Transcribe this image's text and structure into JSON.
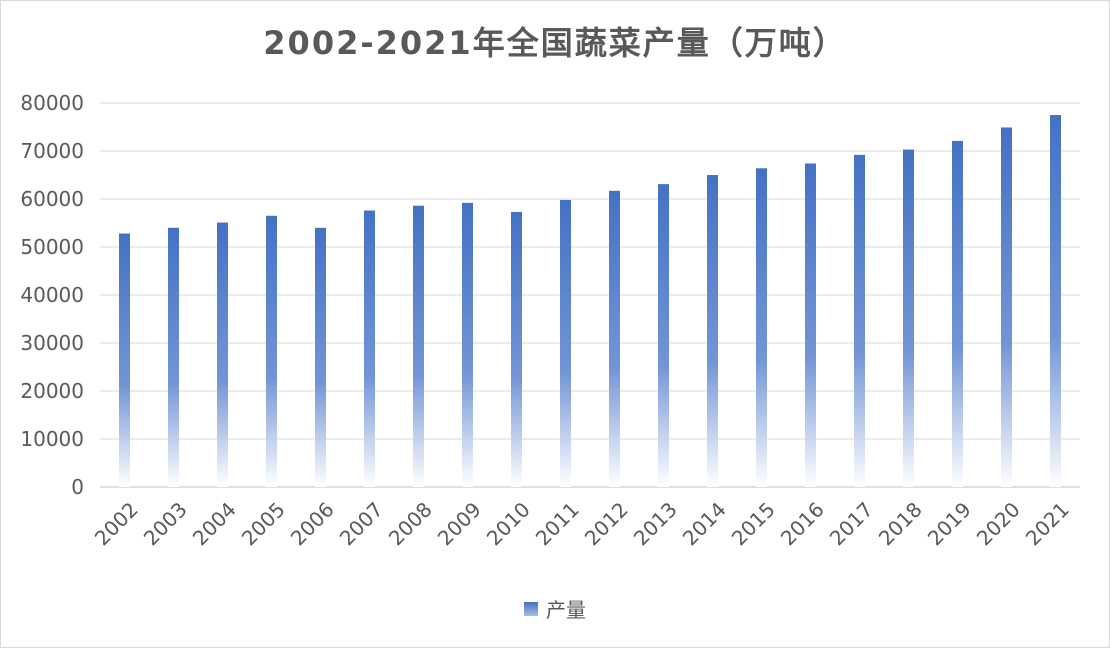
{
  "chart_data": {
    "type": "bar",
    "title": "2002-2021年全国蔬菜产量（万吨）",
    "categories": [
      "2002",
      "2003",
      "2004",
      "2005",
      "2006",
      "2007",
      "2008",
      "2009",
      "2010",
      "2011",
      "2012",
      "2013",
      "2014",
      "2015",
      "2016",
      "2017",
      "2018",
      "2019",
      "2020",
      "2021"
    ],
    "series": [
      {
        "name": "产量",
        "values": [
          52800,
          54000,
          55100,
          56500,
          54000,
          57600,
          58600,
          59200,
          57300,
          59800,
          61700,
          63100,
          65000,
          66400,
          67400,
          69200,
          70300,
          72100,
          74900,
          77500
        ]
      }
    ],
    "ylim": [
      0,
      80000
    ],
    "yticks": [
      "0",
      "10000",
      "20000",
      "30000",
      "40000",
      "50000",
      "60000",
      "70000",
      "80000"
    ],
    "grid": true,
    "legend_position": "bottom",
    "colors": {
      "bar_top": "#4472c4",
      "bar_bottom": "#ffffff",
      "grid": "#d9d9d9",
      "text": "#595959"
    }
  }
}
